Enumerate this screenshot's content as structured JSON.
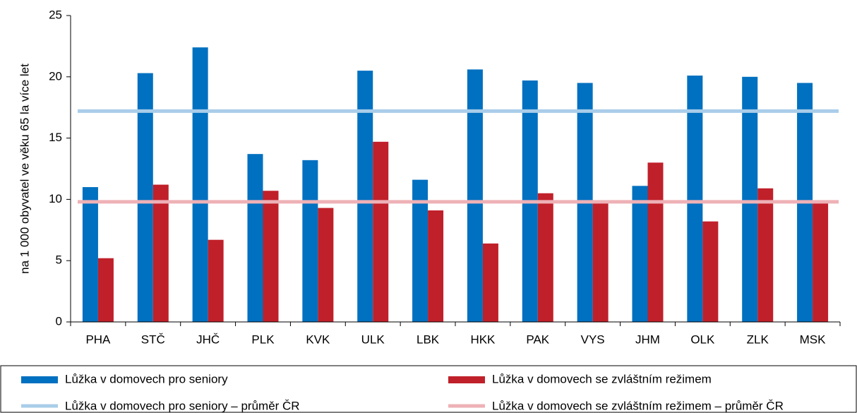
{
  "chart_data": {
    "type": "bar",
    "y_label": "na 1 000 obyvatel ve věku 65 la více let",
    "categories": [
      "PHA",
      "STČ",
      "JHČ",
      "PLK",
      "KVK",
      "ULK",
      "LBK",
      "HKK",
      "PAK",
      "VYS",
      "JHM",
      "OLK",
      "ZLK",
      "MSK"
    ],
    "series": [
      {
        "name": "Lůžka v domovech pro seniory",
        "color": "#0070c0",
        "values": [
          11.0,
          20.3,
          22.4,
          13.7,
          13.2,
          20.5,
          11.6,
          20.6,
          19.7,
          19.5,
          11.1,
          20.1,
          20.0,
          19.5
        ]
      },
      {
        "name": "Lůžka v domovech se zvláštním režimem",
        "color": "#c0202a",
        "values": [
          5.2,
          11.2,
          6.7,
          10.7,
          9.3,
          14.7,
          9.1,
          6.4,
          10.5,
          9.8,
          13.0,
          8.2,
          10.9,
          9.9
        ]
      }
    ],
    "reference_lines": [
      {
        "name": "Lůžka v domovech pro seniory – průměr ČR",
        "color": "#a9cde9",
        "value": 17.2
      },
      {
        "name": "Lůžka v domovech se zvláštním režimem – průměr ČR",
        "color": "#eeb1b6",
        "value": 9.8
      }
    ],
    "ylim": [
      0,
      25
    ],
    "yticks": [
      0,
      5,
      10,
      15,
      20,
      25
    ],
    "grid": false
  }
}
